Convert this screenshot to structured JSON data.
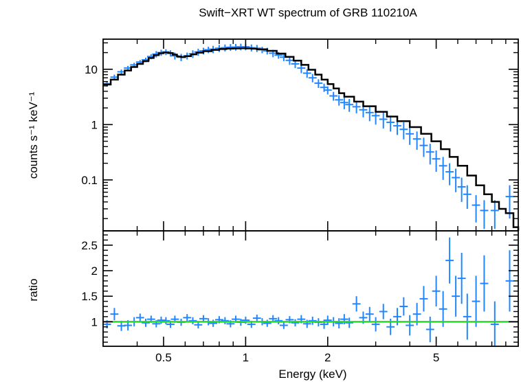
{
  "chart_data": [
    {
      "panel": "spectrum",
      "type": "line",
      "title": "Swift−XRT WT spectrum of GRB 110210A",
      "xlabel": "Energy (keV)",
      "ylabel": "counts s⁻¹ keV⁻¹",
      "xscale": "log",
      "yscale": "log",
      "xlim": [
        0.3,
        10
      ],
      "ylim": [
        0.012,
        35
      ],
      "ytick_labels": [
        "10",
        "1",
        "0.1"
      ],
      "grid": false,
      "colors": {
        "data": "#1f86ff",
        "model": "#000000"
      },
      "series": [
        {
          "kind": "data",
          "x": [
            0.31,
            0.33,
            0.35,
            0.37,
            0.39,
            0.41,
            0.43,
            0.45,
            0.47,
            0.49,
            0.51,
            0.53,
            0.55,
            0.58,
            0.61,
            0.64,
            0.67,
            0.7,
            0.73,
            0.76,
            0.8,
            0.84,
            0.88,
            0.92,
            0.96,
            1.0,
            1.05,
            1.1,
            1.15,
            1.2,
            1.26,
            1.32,
            1.38,
            1.45,
            1.52,
            1.6,
            1.68,
            1.76,
            1.85,
            1.94,
            2.0,
            2.1,
            2.2,
            2.3,
            2.4,
            2.55,
            2.7,
            2.85,
            3.0,
            3.2,
            3.4,
            3.6,
            3.8,
            4.0,
            4.25,
            4.5,
            4.75,
            5.0,
            5.3,
            5.6,
            5.9,
            6.2,
            6.5,
            7.0,
            7.5,
            8.2,
            9.3
          ],
          "y": [
            5.5,
            7.2,
            9.0,
            10.5,
            12.0,
            13.5,
            14.8,
            17.0,
            18.8,
            20.0,
            20.5,
            19.5,
            17.5,
            16.5,
            17.5,
            19.0,
            20.5,
            21.5,
            22.5,
            23.0,
            24.0,
            24.5,
            25.0,
            25.2,
            25.5,
            25.5,
            24.5,
            24.0,
            22.5,
            21.5,
            19.5,
            18.0,
            16.5,
            14.5,
            12.5,
            10.5,
            8.5,
            7.0,
            5.6,
            4.7,
            4.2,
            3.3,
            2.8,
            2.5,
            2.3,
            2.1,
            1.85,
            1.65,
            1.45,
            1.25,
            1.1,
            0.95,
            0.82,
            0.68,
            0.55,
            0.42,
            0.32,
            0.24,
            0.18,
            0.14,
            0.11,
            0.075,
            0.055,
            0.035,
            0.028,
            0.028,
            0.05
          ],
          "yerr": [
            0.6,
            0.8,
            0.9,
            1.0,
            1.1,
            1.2,
            1.4,
            1.8,
            2.5,
            2.5,
            2.5,
            2.5,
            2.5,
            2.5,
            2.5,
            3.0,
            3.0,
            3.0,
            3.0,
            3.5,
            3.5,
            3.5,
            3.5,
            3.5,
            3.5,
            3.5,
            3.5,
            3.5,
            3.0,
            3.0,
            3.0,
            2.5,
            2.5,
            2.5,
            2.0,
            2.0,
            1.5,
            1.2,
            1.0,
            0.8,
            0.7,
            0.6,
            0.6,
            0.6,
            0.6,
            0.5,
            0.5,
            0.5,
            0.45,
            0.4,
            0.35,
            0.3,
            0.28,
            0.25,
            0.2,
            0.16,
            0.13,
            0.1,
            0.08,
            0.06,
            0.05,
            0.035,
            0.025,
            0.018,
            0.015,
            0.015,
            0.03
          ]
        },
        {
          "kind": "model",
          "x": [
            0.3,
            0.32,
            0.34,
            0.36,
            0.38,
            0.4,
            0.42,
            0.44,
            0.46,
            0.48,
            0.5,
            0.52,
            0.54,
            0.56,
            0.58,
            0.6,
            0.63,
            0.66,
            0.7,
            0.75,
            0.8,
            0.85,
            0.9,
            0.95,
            1.0,
            1.05,
            1.1,
            1.2,
            1.3,
            1.4,
            1.5,
            1.6,
            1.7,
            1.8,
            1.9,
            2.0,
            2.1,
            2.2,
            2.3,
            2.5,
            2.7,
            3.0,
            3.3,
            3.6,
            4.0,
            4.4,
            4.8,
            5.2,
            5.6,
            6.0,
            6.5,
            7.0,
            7.5,
            8.0,
            8.5,
            9.0,
            9.6,
            10.0
          ],
          "y": [
            5.3,
            6.5,
            8.0,
            9.5,
            11.0,
            12.5,
            14.0,
            16.0,
            18.0,
            19.5,
            20.2,
            19.6,
            18.4,
            17.0,
            16.6,
            17.2,
            18.6,
            20.0,
            21.2,
            22.4,
            23.2,
            23.6,
            23.8,
            23.9,
            23.8,
            23.5,
            23.0,
            21.5,
            19.2,
            16.8,
            14.3,
            12.0,
            9.8,
            8.0,
            6.5,
            5.4,
            4.5,
            3.7,
            3.2,
            2.6,
            2.15,
            1.7,
            1.4,
            1.15,
            0.9,
            0.68,
            0.5,
            0.36,
            0.26,
            0.18,
            0.12,
            0.08,
            0.055,
            0.04,
            0.03,
            0.025,
            0.014,
            0.012
          ]
        }
      ]
    },
    {
      "panel": "ratio",
      "type": "scatter",
      "ylabel": "ratio",
      "xlabel": "Energy (keV)",
      "xscale": "log",
      "xlim": [
        0.3,
        10
      ],
      "ylim": [
        0.52,
        2.78
      ],
      "ytick_labels": [
        "1",
        "1.5",
        "2",
        "2.5"
      ],
      "yticks": [
        1,
        1.5,
        2,
        2.5
      ],
      "xtick_labels": [
        "0.5",
        "1",
        "2",
        "5"
      ],
      "xticks": [
        0.5,
        1,
        2,
        5
      ],
      "reference_line": 1.0,
      "colors": {
        "data": "#1f86ff",
        "reference": "#22dd22"
      },
      "series": [
        {
          "kind": "data",
          "x": [
            0.31,
            0.33,
            0.35,
            0.37,
            0.39,
            0.41,
            0.43,
            0.45,
            0.47,
            0.49,
            0.51,
            0.53,
            0.55,
            0.58,
            0.61,
            0.64,
            0.67,
            0.7,
            0.73,
            0.76,
            0.8,
            0.84,
            0.88,
            0.92,
            0.96,
            1.0,
            1.05,
            1.1,
            1.15,
            1.2,
            1.26,
            1.32,
            1.38,
            1.45,
            1.52,
            1.6,
            1.68,
            1.76,
            1.85,
            1.94,
            2.0,
            2.1,
            2.2,
            2.3,
            2.4,
            2.55,
            2.7,
            2.85,
            3.0,
            3.2,
            3.4,
            3.6,
            3.8,
            4.0,
            4.25,
            4.5,
            4.75,
            5.0,
            5.3,
            5.6,
            5.9,
            6.2,
            6.5,
            7.0,
            7.5,
            8.2,
            9.3
          ],
          "y": [
            0.95,
            1.15,
            0.92,
            0.93,
            1.0,
            1.08,
            0.98,
            1.05,
            0.96,
            1.03,
            1.02,
            0.95,
            1.05,
            0.99,
            1.08,
            1.02,
            0.94,
            1.06,
            1.0,
            0.97,
            1.04,
            1.02,
            0.96,
            1.05,
            0.99,
            1.03,
            0.95,
            1.07,
            1.0,
            0.97,
            1.06,
            1.02,
            0.93,
            1.04,
            0.98,
            1.05,
            0.96,
            1.02,
            0.99,
            0.95,
            1.03,
            1.0,
            0.97,
            1.05,
            0.98,
            1.35,
            1.08,
            1.15,
            0.95,
            1.2,
            0.9,
            1.1,
            1.3,
            0.93,
            1.15,
            1.45,
            0.85,
            1.6,
            1.25,
            2.2,
            1.5,
            1.85,
            1.1,
            1.4,
            1.75,
            0.95,
            1.8
          ],
          "yerr": [
            0.08,
            0.12,
            0.1,
            0.1,
            0.09,
            0.08,
            0.08,
            0.07,
            0.07,
            0.07,
            0.07,
            0.07,
            0.07,
            0.07,
            0.07,
            0.07,
            0.07,
            0.07,
            0.07,
            0.07,
            0.07,
            0.07,
            0.07,
            0.07,
            0.07,
            0.07,
            0.07,
            0.07,
            0.07,
            0.07,
            0.07,
            0.07,
            0.07,
            0.07,
            0.07,
            0.08,
            0.08,
            0.08,
            0.08,
            0.09,
            0.09,
            0.09,
            0.1,
            0.1,
            0.1,
            0.15,
            0.12,
            0.14,
            0.14,
            0.15,
            0.16,
            0.17,
            0.18,
            0.2,
            0.22,
            0.25,
            0.25,
            0.3,
            0.35,
            0.45,
            0.4,
            0.5,
            0.45,
            0.5,
            0.55,
            0.45,
            0.6
          ]
        }
      ]
    }
  ]
}
